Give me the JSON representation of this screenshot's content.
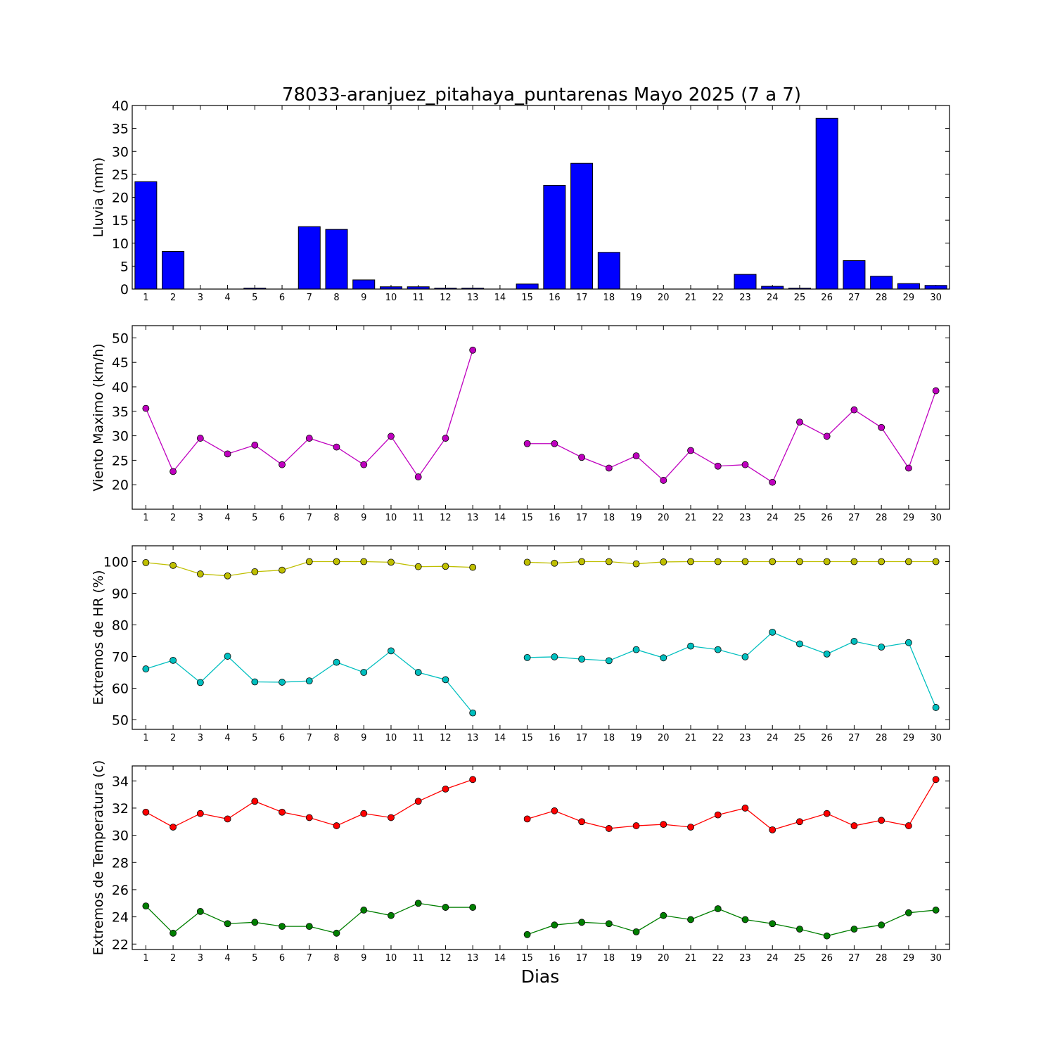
{
  "title": "78033-aranjuez_pitahaya_puntarenas Mayo 2025  (7 a 7)",
  "xlabel": "Dias",
  "chart_data": [
    {
      "type": "bar",
      "ylabel": "Lluvia (mm)",
      "ylim": [
        0,
        40
      ],
      "yticks": [
        0,
        5,
        10,
        15,
        20,
        25,
        30,
        35,
        40
      ],
      "x": [
        1,
        2,
        3,
        4,
        5,
        6,
        7,
        8,
        9,
        10,
        11,
        12,
        13,
        14,
        15,
        16,
        17,
        18,
        19,
        20,
        21,
        22,
        23,
        24,
        25,
        26,
        27,
        28,
        29,
        30
      ],
      "series": [
        {
          "values": [
            23.4,
            8.2,
            0,
            0,
            0.2,
            0,
            13.6,
            13.0,
            2.0,
            0.5,
            0.5,
            0.2,
            0.2,
            0,
            1.1,
            22.6,
            27.4,
            8.0,
            0,
            0,
            0,
            0,
            3.2,
            0.6,
            0.2,
            37.2,
            6.2,
            2.8,
            1.2,
            0.8
          ],
          "color": "#0000ff"
        }
      ]
    },
    {
      "type": "line",
      "ylabel": "Viento Maximo (km/h)",
      "ylim": [
        15,
        52.5
      ],
      "yticks": [
        20,
        25,
        30,
        35,
        40,
        45,
        50
      ],
      "x": [
        1,
        2,
        3,
        4,
        5,
        6,
        7,
        8,
        9,
        10,
        11,
        12,
        13,
        14,
        15,
        16,
        17,
        18,
        19,
        20,
        21,
        22,
        23,
        24,
        25,
        26,
        27,
        28,
        29,
        30
      ],
      "series": [
        {
          "values": [
            35.6,
            22.7,
            29.5,
            26.3,
            28.1,
            24.1,
            29.5,
            27.7,
            24.1,
            29.9,
            21.6,
            29.5,
            47.5,
            null,
            28.4,
            28.4,
            25.6,
            23.4,
            25.9,
            20.9,
            27.0,
            23.8,
            24.1,
            20.5,
            32.8,
            29.9,
            35.3,
            31.7,
            23.4,
            39.2
          ],
          "color": "#bf00bf"
        }
      ]
    },
    {
      "type": "line",
      "ylabel": "Extremos de HR (%)",
      "ylim": [
        47,
        105
      ],
      "yticks": [
        50,
        60,
        70,
        80,
        90,
        100
      ],
      "x": [
        1,
        2,
        3,
        4,
        5,
        6,
        7,
        8,
        9,
        10,
        11,
        12,
        13,
        14,
        15,
        16,
        17,
        18,
        19,
        20,
        21,
        22,
        23,
        24,
        25,
        26,
        27,
        28,
        29,
        30
      ],
      "series": [
        {
          "values": [
            99.7,
            98.8,
            96.1,
            95.5,
            96.8,
            97.3,
            100,
            100,
            100,
            99.8,
            98.4,
            98.5,
            98.2,
            null,
            99.8,
            99.5,
            100,
            100,
            99.3,
            99.9,
            100,
            100,
            100,
            100,
            100,
            100,
            100,
            100,
            100,
            100
          ],
          "color": "#bfbf00"
        },
        {
          "values": [
            66.1,
            68.8,
            61.8,
            70.1,
            62.0,
            61.9,
            62.3,
            68.2,
            65.0,
            71.8,
            65.0,
            62.7,
            52.2,
            null,
            69.7,
            69.9,
            69.2,
            68.7,
            72.2,
            69.6,
            73.3,
            72.2,
            69.9,
            77.7,
            74.0,
            70.8,
            74.8,
            73.0,
            74.4,
            53.9
          ],
          "color": "#00bfbf"
        }
      ]
    },
    {
      "type": "line",
      "ylabel": "Extremos de Temperatura (c)",
      "ylim": [
        21.6,
        35.1
      ],
      "yticks": [
        22,
        24,
        26,
        28,
        30,
        32,
        34
      ],
      "x": [
        1,
        2,
        3,
        4,
        5,
        6,
        7,
        8,
        9,
        10,
        11,
        12,
        13,
        14,
        15,
        16,
        17,
        18,
        19,
        20,
        21,
        22,
        23,
        24,
        25,
        26,
        27,
        28,
        29,
        30
      ],
      "series": [
        {
          "values": [
            31.7,
            30.6,
            31.6,
            31.2,
            32.5,
            31.7,
            31.3,
            30.7,
            31.6,
            31.3,
            32.5,
            33.4,
            34.1,
            null,
            31.2,
            31.8,
            31.0,
            30.5,
            30.7,
            30.8,
            30.6,
            31.5,
            32.0,
            30.4,
            31.0,
            31.6,
            30.7,
            31.1,
            30.7,
            34.1
          ],
          "color": "#ff0000"
        },
        {
          "values": [
            24.8,
            22.8,
            24.4,
            23.5,
            23.6,
            23.3,
            23.3,
            22.8,
            24.5,
            24.1,
            25.0,
            24.7,
            24.7,
            null,
            22.7,
            23.4,
            23.6,
            23.5,
            22.9,
            24.1,
            23.8,
            24.6,
            23.8,
            23.5,
            23.1,
            22.6,
            23.1,
            23.4,
            24.3,
            24.5
          ],
          "color": "#007f00"
        }
      ]
    }
  ]
}
